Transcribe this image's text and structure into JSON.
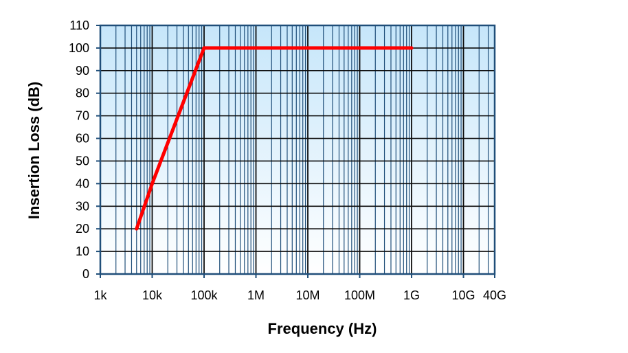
{
  "chart_data": {
    "type": "line",
    "title": "",
    "xlabel": "Frequency (Hz)",
    "ylabel": "Insertion Loss (dB)",
    "x_scale": "log",
    "xlim": [
      1000,
      40000000000
    ],
    "ylim": [
      0,
      110
    ],
    "x_ticks": [
      {
        "value": 1000,
        "label": "1k"
      },
      {
        "value": 10000,
        "label": "10k"
      },
      {
        "value": 100000,
        "label": "100k"
      },
      {
        "value": 1000000,
        "label": "1M"
      },
      {
        "value": 10000000,
        "label": "10M"
      },
      {
        "value": 100000000,
        "label": "100M"
      },
      {
        "value": 1000000000,
        "label": "1G"
      },
      {
        "value": 10000000000,
        "label": "10G"
      },
      {
        "value": 40000000000,
        "label": "40G"
      }
    ],
    "y_ticks": [
      0,
      10,
      20,
      30,
      40,
      50,
      60,
      70,
      80,
      90,
      100,
      110
    ],
    "grid": true,
    "legend": "none",
    "series": [
      {
        "color": "#ff0000",
        "points": [
          {
            "x": 5000,
            "y": 20
          },
          {
            "x": 10000,
            "y": 40
          },
          {
            "x": 100000,
            "y": 100
          },
          {
            "x": 1000000000,
            "y": 100
          }
        ]
      }
    ],
    "colors": {
      "background_top": "#c6e6fa",
      "background_bottom": "#ffffff",
      "major_grid": "#0a0a0a",
      "minor_grid": "#1f4e79",
      "frame": "#1f4e79"
    }
  }
}
